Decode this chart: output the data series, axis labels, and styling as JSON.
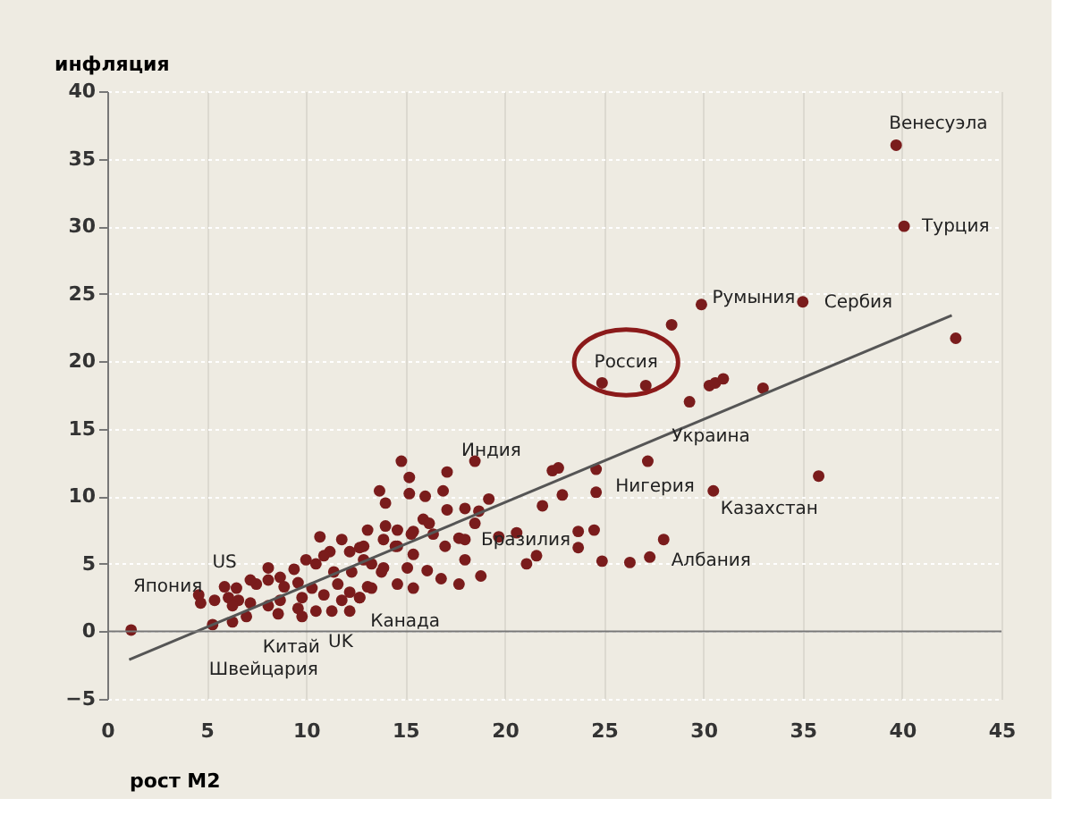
{
  "chart_data": {
    "type": "scatter",
    "xlabel": "рост M2",
    "ylabel": "инфляция",
    "xlim": [
      0,
      45
    ],
    "ylim": [
      -5,
      40
    ],
    "xticks": [
      0,
      5,
      10,
      15,
      20,
      25,
      30,
      35,
      40,
      45
    ],
    "yticks": [
      -5,
      0,
      5,
      10,
      15,
      20,
      25,
      30,
      35,
      40
    ],
    "grid": true,
    "series": [
      {
        "marker": "circle",
        "color": "#7a1c1c",
        "x": [
          39.7,
          40.1,
          29.9,
          35.0,
          28.4,
          42.7,
          24.9,
          27.1,
          29.3,
          30.3,
          30.6,
          31.0,
          33.0,
          27.2,
          24.6,
          24.6,
          22.4,
          22.7,
          22.9,
          21.9,
          30.5,
          23.7,
          24.5,
          28.0,
          27.3,
          26.3,
          24.9,
          23.7,
          21.1,
          21.6,
          20.6,
          19.7,
          35.8,
          18.5,
          17.1,
          14.8,
          15.2,
          13.7,
          15.2,
          16.0,
          16.9,
          19.2,
          14.0,
          17.1,
          18.0,
          18.7,
          18.5,
          15.9,
          16.2,
          15.4,
          16.4,
          14.6,
          17.0,
          17.7,
          18.0,
          15.4,
          13.1,
          12.9,
          13.9,
          18.0,
          18.8,
          16.1,
          16.8,
          17.7,
          13.8,
          14.6,
          15.4,
          13.1,
          14.0,
          14.6,
          10.7,
          11.8,
          12.7,
          11.2,
          12.2,
          14.5,
          15.3,
          10.0,
          10.5,
          10.9,
          13.3,
          12.9,
          13.9,
          9.4,
          8.7,
          8.1,
          8.9,
          9.6,
          10.3,
          9.8,
          10.9,
          11.6,
          12.2,
          12.7,
          11.8,
          13.3,
          11.4,
          12.3,
          15.1,
          11.3,
          12.2,
          10.5,
          8.1,
          7.5,
          8.7,
          8.1,
          9.6,
          9.8,
          5.9,
          6.5,
          6.1,
          6.6,
          6.3,
          7.2,
          7.0,
          6.3,
          5.4,
          4.6,
          4.7,
          5.3,
          1.2,
          7.2,
          8.6,
          12.7
        ],
        "values": [
          36.0,
          30.0,
          24.2,
          24.4,
          22.7,
          21.7,
          18.4,
          18.2,
          17.0,
          18.2,
          18.4,
          18.7,
          18.0,
          12.6,
          12.0,
          10.3,
          11.9,
          12.1,
          10.1,
          9.3,
          10.4,
          7.4,
          7.5,
          6.8,
          5.5,
          5.1,
          5.2,
          6.2,
          5.0,
          5.6,
          7.3,
          7.0,
          11.5,
          12.6,
          11.8,
          12.6,
          11.4,
          10.4,
          10.2,
          10.0,
          10.4,
          9.8,
          9.5,
          9.0,
          9.1,
          8.9,
          8.0,
          8.3,
          8.0,
          7.4,
          7.2,
          6.3,
          6.3,
          6.9,
          6.8,
          5.7,
          7.5,
          6.3,
          6.8,
          5.3,
          4.1,
          4.5,
          3.9,
          3.5,
          4.4,
          3.5,
          3.2,
          3.3,
          7.8,
          7.5,
          7.0,
          6.8,
          6.2,
          5.9,
          5.9,
          6.3,
          7.2,
          5.3,
          5.0,
          5.6,
          5.0,
          5.3,
          4.7,
          4.6,
          4.0,
          3.8,
          3.3,
          3.6,
          3.2,
          2.5,
          2.7,
          3.5,
          2.9,
          2.5,
          2.3,
          3.2,
          4.4,
          4.4,
          4.7,
          1.5,
          1.5,
          1.5,
          4.7,
          3.5,
          2.3,
          1.9,
          1.7,
          1.1,
          3.3,
          3.2,
          2.5,
          2.3,
          1.9,
          2.1,
          1.1,
          0.7,
          2.3,
          2.7,
          2.1,
          0.5,
          0.1,
          3.8,
          1.3,
          2.5
        ]
      },
      {
        "type": "line",
        "color": "#555555",
        "x": [
          1.1,
          42.5
        ],
        "values": [
          -2.1,
          23.4
        ]
      }
    ],
    "ref_lines": [
      {
        "axis": "y",
        "value": 0,
        "color": "#777777"
      }
    ],
    "annotations": [
      {
        "text": "Венесуэла",
        "x": 39.7,
        "y": 36.0
      },
      {
        "text": "Турция",
        "x": 40.1,
        "y": 30.0
      },
      {
        "text": "Румыния",
        "x": 29.9,
        "y": 24.2
      },
      {
        "text": "Сербия",
        "x": 35.0,
        "y": 24.4
      },
      {
        "text": "Россия",
        "x": 27.1,
        "y": 18.2
      },
      {
        "text": "Украина",
        "x": 29.3,
        "y": 17.0
      },
      {
        "text": "Нигерия",
        "x": 27.2,
        "y": 12.6
      },
      {
        "text": "Казахстан",
        "x": 30.5,
        "y": 10.4
      },
      {
        "text": "Албания",
        "x": 27.3,
        "y": 5.5
      },
      {
        "text": "Бразилия",
        "x": 21.6,
        "y": 5.6
      },
      {
        "text": "Индия",
        "x": 17.1,
        "y": 11.8
      },
      {
        "text": "US",
        "x": 5.9,
        "y": 3.3
      },
      {
        "text": "Япония",
        "x": 4.6,
        "y": 2.7
      },
      {
        "text": "UK",
        "x": 11.3,
        "y": 1.5
      },
      {
        "text": "Канада",
        "x": 12.7,
        "y": 2.5
      },
      {
        "text": "Китай",
        "x": 9.8,
        "y": 1.1
      },
      {
        "text": "Швейцария",
        "x": 5.3,
        "y": 0.5
      }
    ]
  }
}
